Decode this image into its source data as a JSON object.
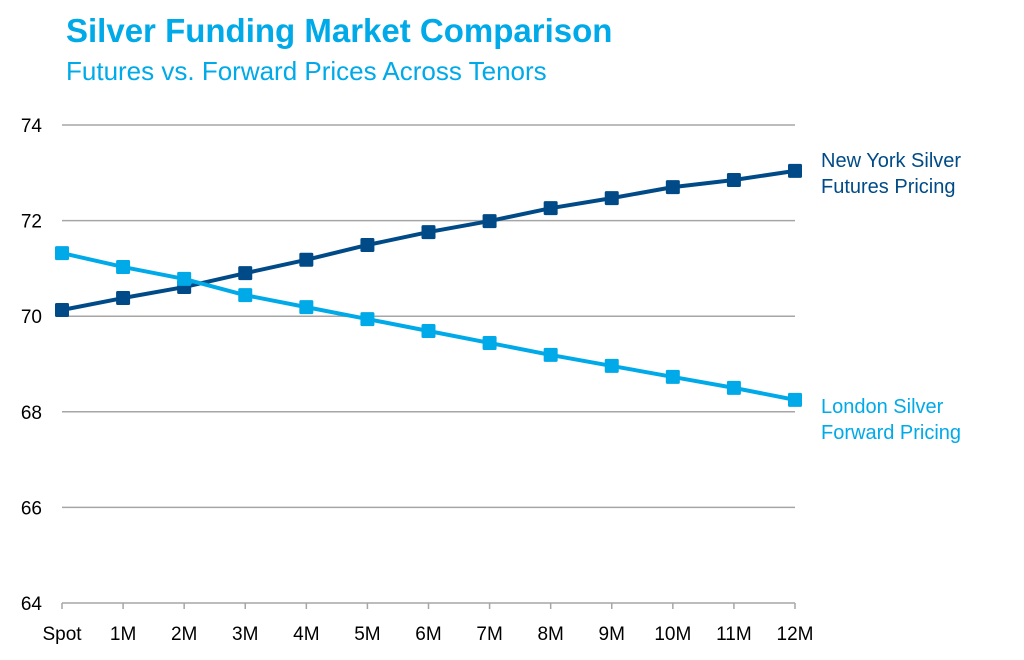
{
  "chart_data": {
    "type": "line",
    "title": "Silver Funding Market Comparison",
    "subtitle": "Futures vs. Forward Prices Across Tenors",
    "categories": [
      "Spot",
      "1M",
      "2M",
      "3M",
      "4M",
      "5M",
      "6M",
      "7M",
      "8M",
      "9M",
      "10M",
      "11M",
      "12M"
    ],
    "ylim": [
      64,
      74
    ],
    "yticks": [
      "64",
      "66",
      "68",
      "70",
      "72",
      "74"
    ],
    "yticks_values": [
      64,
      66,
      68,
      70,
      72,
      74
    ],
    "grid": "horizontal",
    "legend": "right, direct labels at line ends",
    "series": [
      {
        "name": "New York Silver Futures Pricing",
        "label_lines": [
          "New York Silver",
          "Futures Pricing"
        ],
        "color": "#004B87",
        "values": [
          70.13,
          70.38,
          70.61,
          70.9,
          71.18,
          71.49,
          71.76,
          71.99,
          72.26,
          72.47,
          72.7,
          72.85,
          73.04
        ]
      },
      {
        "name": "London Silver Forward Pricing",
        "label_lines": [
          "London Silver",
          "Forward Pricing"
        ],
        "color": "#00A9E8",
        "values": [
          71.32,
          71.03,
          70.78,
          70.44,
          70.19,
          69.94,
          69.69,
          69.44,
          69.19,
          68.96,
          68.73,
          68.5,
          68.25
        ]
      }
    ]
  }
}
